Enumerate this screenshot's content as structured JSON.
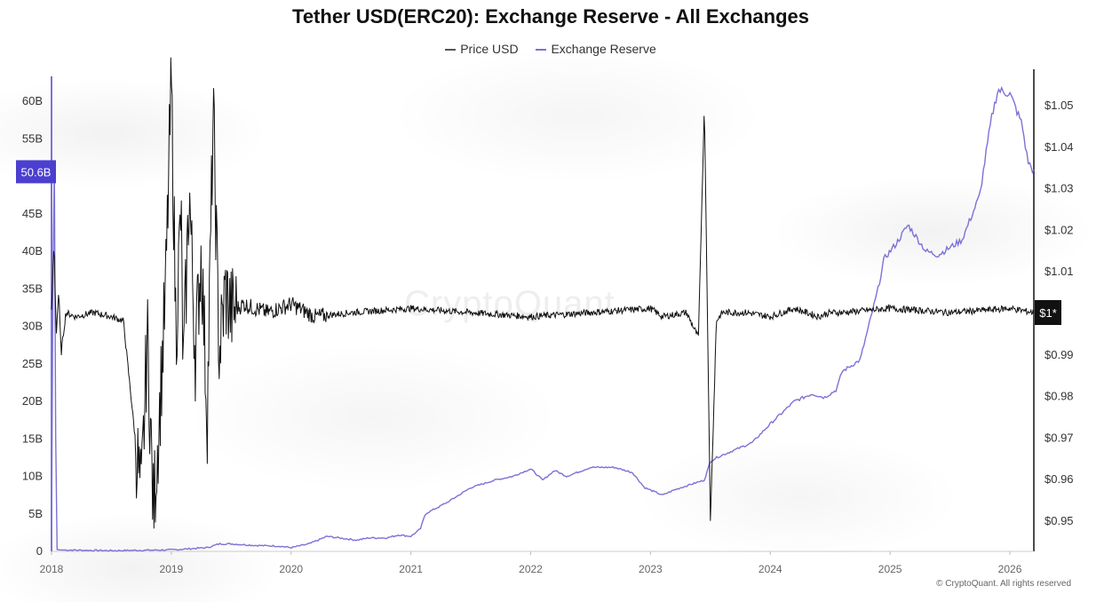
{
  "chart_data": {
    "type": "line",
    "title": "Tether USD(ERC20): Exchange Reserve - All Exchanges",
    "legend": [
      "Price USD",
      "Exchange Reserve"
    ],
    "legend_position": "top-center",
    "grid": false,
    "colors": {
      "price": "#111111",
      "reserve": "#7b72d6",
      "reserve_badge": "#4b3fd0",
      "price_badge": "#111111"
    },
    "x_axis": {
      "ticks": [
        "2018",
        "2019",
        "2020",
        "2021",
        "2022",
        "2023",
        "2024",
        "2025",
        "2026"
      ],
      "range": [
        2018.0,
        2026.2
      ]
    },
    "y_left": {
      "label": "",
      "ticks": [
        "0",
        "5B",
        "10B",
        "15B",
        "20B",
        "25B",
        "30B",
        "35B",
        "40B",
        "45B",
        "55B",
        "60B"
      ],
      "range": [
        0,
        60
      ],
      "unit": "B",
      "current_badge": "50.6B"
    },
    "y_right": {
      "label": "",
      "ticks": [
        "$0.95",
        "$0.96",
        "$0.97",
        "$0.98",
        "$0.99",
        "$1.01",
        "$1.02",
        "$1.03",
        "$1.04",
        "$1.05"
      ],
      "range": [
        0.947,
        1.053
      ],
      "current_badge": "$1*"
    },
    "series": [
      {
        "name": "Exchange Reserve",
        "axis": "left",
        "x": [
          2018.0,
          2018.02,
          2018.04,
          2018.06,
          2018.5,
          2019.0,
          2019.3,
          2019.4,
          2019.5,
          2019.7,
          2019.9,
          2020.0,
          2020.15,
          2020.3,
          2020.4,
          2020.55,
          2020.65,
          2020.8,
          2020.9,
          2021.0,
          2021.08,
          2021.12,
          2021.3,
          2021.4,
          2021.5,
          2021.7,
          2021.85,
          2022.0,
          2022.1,
          2022.2,
          2022.3,
          2022.5,
          2022.7,
          2022.85,
          2022.95,
          2023.1,
          2023.2,
          2023.35,
          2023.45,
          2023.5,
          2023.55,
          2023.7,
          2023.85,
          2024.0,
          2024.1,
          2024.2,
          2024.35,
          2024.45,
          2024.55,
          2024.6,
          2024.75,
          2024.9,
          2024.95,
          2025.05,
          2025.15,
          2025.3,
          2025.4,
          2025.6,
          2025.75,
          2025.8,
          2025.85,
          2025.9,
          2026.0,
          2026.1,
          2026.15,
          2026.2
        ],
        "values": [
          0,
          62,
          0.3,
          0.2,
          0.1,
          0.2,
          0.5,
          1.0,
          1.0,
          0.8,
          0.7,
          0.5,
          1.0,
          2.0,
          1.8,
          1.5,
          1.8,
          1.8,
          2.2,
          2.0,
          3.0,
          5.0,
          6.5,
          7.5,
          8.5,
          9.5,
          10.0,
          11.0,
          9.5,
          10.8,
          10.0,
          11.2,
          11.2,
          10.5,
          8.5,
          7.5,
          8.2,
          9.0,
          9.5,
          12.0,
          12.5,
          13.5,
          14.5,
          17.0,
          18.5,
          20.0,
          21.0,
          20.5,
          21.5,
          24.0,
          25.5,
          35.0,
          39.0,
          41.0,
          43.5,
          40.0,
          39.5,
          41.5,
          47.5,
          53.0,
          58.0,
          61.5,
          61.0,
          57.0,
          52.0,
          50.6
        ]
      },
      {
        "name": "Price USD",
        "axis": "right",
        "x": [
          2018.0,
          2018.02,
          2018.04,
          2018.06,
          2018.08,
          2018.12,
          2018.2,
          2018.35,
          2018.5,
          2018.6,
          2018.75,
          2018.8,
          2018.85,
          2018.9,
          2018.95,
          2019.0,
          2019.04,
          2019.08,
          2019.1,
          2019.15,
          2019.2,
          2019.25,
          2019.3,
          2019.35,
          2019.4,
          2019.45,
          2019.5,
          2019.6,
          2019.8,
          2020.0,
          2020.2,
          2020.5,
          2021.0,
          2021.5,
          2022.0,
          2022.5,
          2023.0,
          2023.1,
          2023.3,
          2023.4,
          2023.45,
          2023.5,
          2023.55,
          2023.6,
          2023.8,
          2024.0,
          2024.2,
          2024.4,
          2024.5,
          2024.6,
          2025.0,
          2025.5,
          2026.0,
          2026.2
        ],
        "values": [
          1.0,
          1.017,
          0.995,
          1.005,
          0.99,
          1.0,
          0.999,
          1.0,
          0.999,
          0.998,
          0.955,
          0.995,
          0.952,
          0.975,
          1.003,
          1.055,
          0.995,
          1.025,
          0.985,
          1.03,
          0.99,
          1.015,
          0.975,
          1.048,
          0.99,
          1.005,
          1.0,
          1.002,
          1.0,
          1.002,
          0.999,
          1.0,
          1.001,
          1.0,
          0.999,
          1.0,
          1.001,
          0.999,
          1.0,
          0.994,
          1.05,
          0.95,
          0.998,
          1.0,
          1.0,
          0.999,
          1.001,
          0.999,
          1.0,
          1.0,
          1.001,
          1.0,
          1.001,
          1.0
        ]
      }
    ]
  },
  "watermark": "CryptoQuant",
  "copyright": "© CryptoQuant. All rights reserved"
}
